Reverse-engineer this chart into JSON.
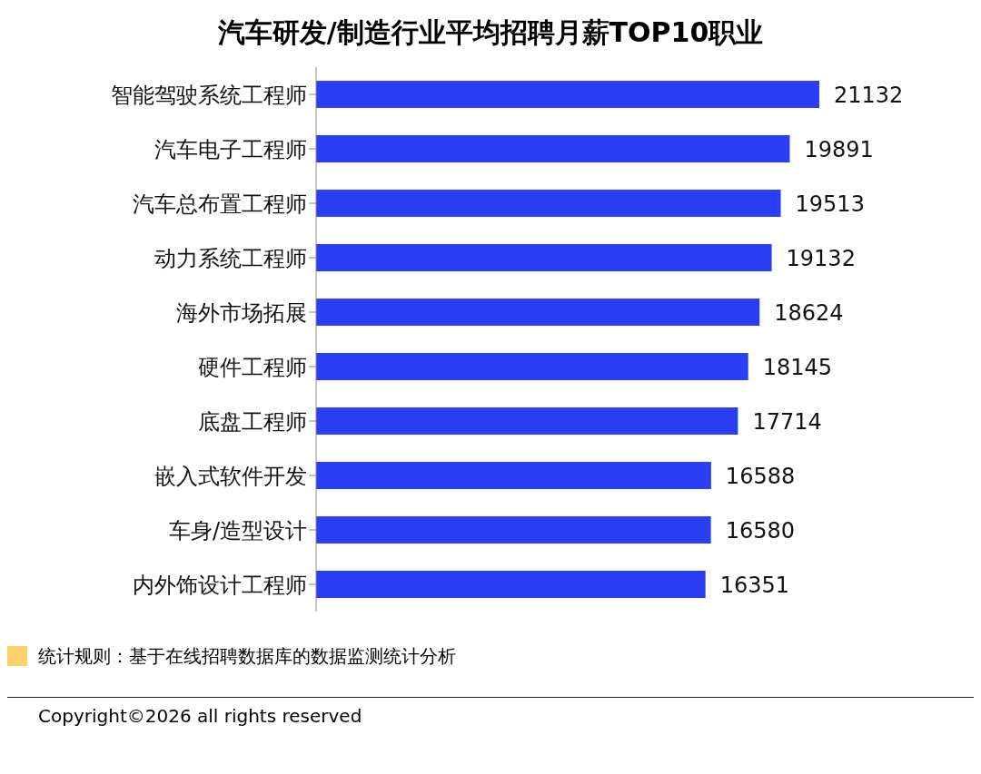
{
  "chart_data": {
    "type": "bar",
    "orientation": "horizontal",
    "title": "汽车研发/制造行业平均招聘月薪TOP10职业",
    "categories": [
      "智能驾驶系统工程师",
      "汽车电子工程师",
      "汽车总布置工程师",
      "动力系统工程师",
      "海外市场拓展",
      "硬件工程师",
      "底盘工程师",
      "嵌入式软件开发",
      "车身/造型设计",
      "内外饰设计工程师"
    ],
    "values": [
      21132,
      19891,
      19513,
      19132,
      18624,
      18145,
      17714,
      16588,
      16580,
      16351
    ],
    "color": "#2a3ef2",
    "data_labels": true,
    "tick_labels": "y",
    "annotations": [
      "统计规则：基于在线招聘数据库的数据监测统计分析",
      "Copyright©2026 all rights reserved"
    ]
  }
}
